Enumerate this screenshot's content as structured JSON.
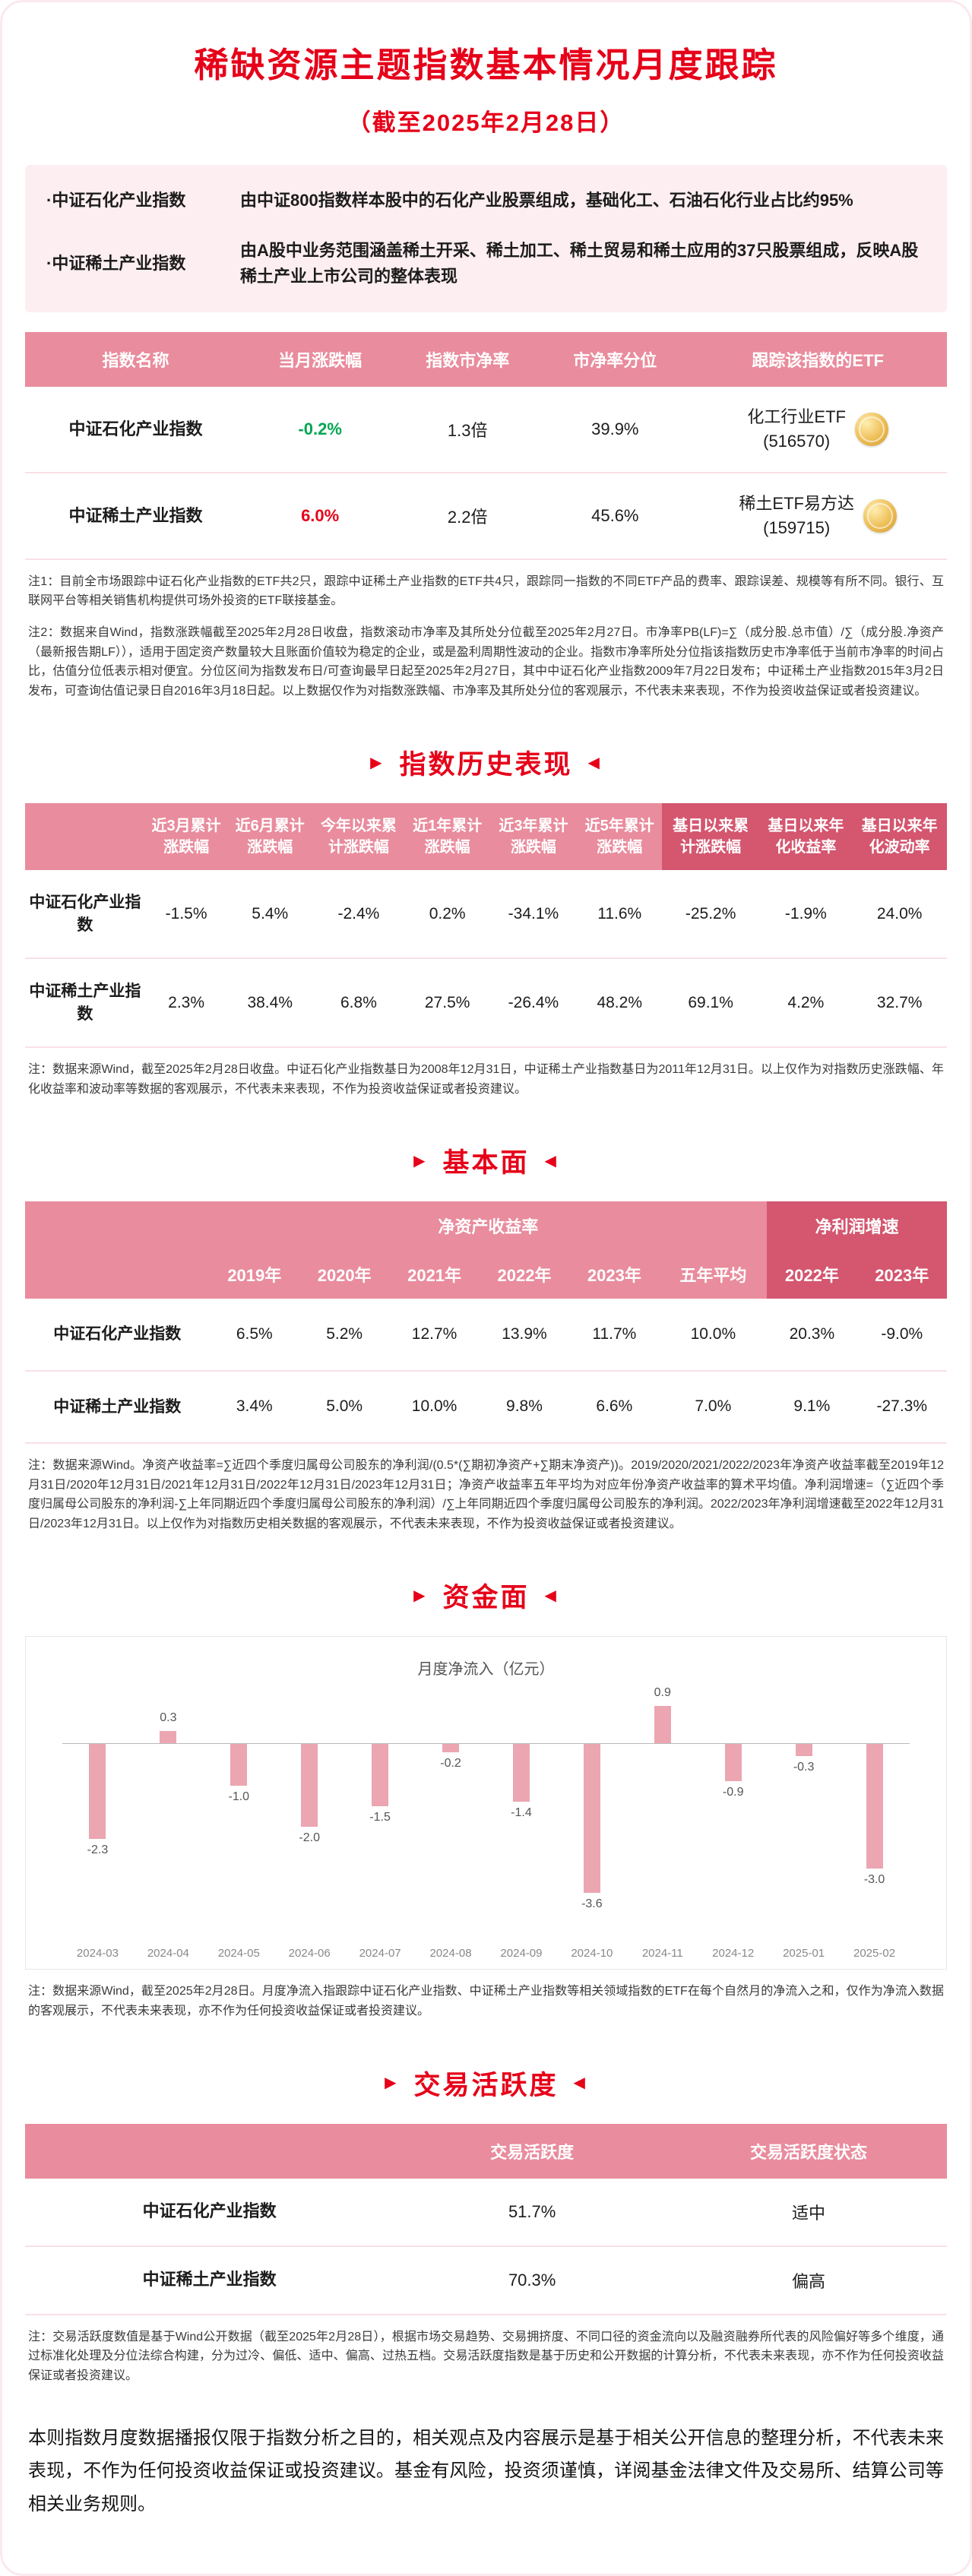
{
  "page": {
    "title": "稀缺资源主题指数基本情况月度跟踪",
    "subtitle": "（截至2025年2月28日）"
  },
  "icons": {
    "right_arrow": "▶",
    "left_arrow": "◀",
    "award_badge": "gold-seal"
  },
  "colors": {
    "accent_red": "#e60019",
    "header_pink": "#e98c9d",
    "header_dark_pink": "#d4566f",
    "up_red": "#e60019",
    "down_green": "#00a651"
  },
  "intro": [
    {
      "label": "·中证石化产业指数",
      "desc": "由中证800指数样本股中的石化产业股票组成，基础化工、石油石化行业占比约95%"
    },
    {
      "label": "·中证稀土产业指数",
      "desc": "由A股中业务范围涵盖稀土开采、稀土加工、稀土贸易和稀土应用的37只股票组成，反映A股稀土产业上市公司的整体表现"
    }
  ],
  "overview": {
    "headers": [
      "指数名称",
      "当月涨跌幅",
      "指数市净率",
      "市净率分位",
      "跟踪该指数的ETF"
    ],
    "rows": [
      {
        "name": "中证石化产业指数",
        "change": "-0.2%",
        "change_color": "#00a651",
        "pb": "1.3倍",
        "pb_quantile": "39.9%",
        "etf_name": "化工行业ETF",
        "etf_code": "(516570)"
      },
      {
        "name": "中证稀土产业指数",
        "change": "6.0%",
        "change_color": "#e60019",
        "pb": "2.2倍",
        "pb_quantile": "45.6%",
        "etf_name": "稀土ETF易方达",
        "etf_code": "(159715)"
      }
    ],
    "note1": "注1：目前全市场跟踪中证石化产业指数的ETF共2只，跟踪中证稀土产业指数的ETF共4只，跟踪同一指数的不同ETF产品的费率、跟踪误差、规模等有所不同。银行、互联网平台等相关销售机构提供可场外投资的ETF联接基金。",
    "note2": "注2：数据来自Wind，指数涨跌幅截至2025年2月28日收盘，指数滚动市净率及其所处分位截至2025年2月27日。市净率PB(LF)=∑（成分股.总市值）/∑（成分股.净资产（最新报告期LF）），适用于固定资产数量较大且账面价值较为稳定的企业，或是盈利周期性波动的企业。指数市净率所处分位指该指数历史市净率低于当前市净率的时间占比，估值分位低表示相对便宜。分位区间为指数发布日/可查询最早日起至2025年2月27日，其中中证石化产业指数2009年7月22日发布；中证稀土产业指数2015年3月2日发布，可查询估值记录日自2016年3月18日起。以上数据仅作为对指数涨跌幅、市净率及其所处分位的客观展示，不代表未来表现，不作为投资收益保证或者投资建议。"
  },
  "history": {
    "section_title": "指数历史表现",
    "headers": [
      "近3月累计涨跌幅",
      "近6月累计涨跌幅",
      "今年以来累计涨跌幅",
      "近1年累计涨跌幅",
      "近3年累计涨跌幅",
      "近5年累计涨跌幅",
      "基日以来累计涨跌幅",
      "基日以来年化收益率",
      "基日以来年化波动率"
    ],
    "rows": [
      {
        "name": "中证石化产业指数",
        "values": [
          "-1.5%",
          "5.4%",
          "-2.4%",
          "0.2%",
          "-34.1%",
          "11.6%",
          "-25.2%",
          "-1.9%",
          "24.0%"
        ]
      },
      {
        "name": "中证稀土产业指数",
        "values": [
          "2.3%",
          "38.4%",
          "6.8%",
          "27.5%",
          "-26.4%",
          "48.2%",
          "69.1%",
          "4.2%",
          "32.7%"
        ]
      }
    ],
    "note": "注：数据来源Wind，截至2025年2月28日收盘。中证石化产业指数基日为2008年12月31日，中证稀土产业指数基日为2011年12月31日。以上仅作为对指数历史涨跌幅、年化收益率和波动率等数据的客观展示，不代表未来表现，不作为投资收益保证或者投资建议。"
  },
  "fundamentals": {
    "section_title": "基本面",
    "group_headers": [
      "净资产收益率",
      "净利润增速"
    ],
    "year_headers": [
      "2019年",
      "2020年",
      "2021年",
      "2022年",
      "2023年",
      "五年平均",
      "2022年",
      "2023年"
    ],
    "rows": [
      {
        "name": "中证石化产业指数",
        "values": [
          "6.5%",
          "5.2%",
          "12.7%",
          "13.9%",
          "11.7%",
          "10.0%",
          "20.3%",
          "-9.0%"
        ]
      },
      {
        "name": "中证稀土产业指数",
        "values": [
          "3.4%",
          "5.0%",
          "10.0%",
          "9.8%",
          "6.6%",
          "7.0%",
          "9.1%",
          "-27.3%"
        ]
      }
    ],
    "note": "注：数据来源Wind。净资产收益率=∑近四个季度归属母公司股东的净利润/(0.5*(∑期初净资产+∑期末净资产))。2019/2020/2021/2022/2023年净资产收益率截至2019年12月31日/2020年12月31日/2021年12月31日/2022年12月31日/2023年12月31日；净资产收益率五年平均为对应年份净资产收益率的算术平均值。净利润增速=（∑近四个季度归属母公司股东的净利润-∑上年同期近四个季度归属母公司股东的净利润）/∑上年同期近四个季度归属母公司股东的净利润。2022/2023年净利润增速截至2022年12月31日/2023年12月31日。以上仅作为对指数历史相关数据的客观展示，不代表未来表现，不作为投资收益保证或者投资建议。"
  },
  "funds_section": {
    "section_title": "资金面",
    "note": "注：数据来源Wind，截至2025年2月28日。月度净流入指跟踪中证石化产业指数、中证稀土产业指数等相关领域指数的ETF在每个自然月的净流入之和，仅作为净流入数据的客观展示，不代表未来表现，亦不作为任何投资收益保证或者投资建议。"
  },
  "chart_data": {
    "type": "bar",
    "title": "月度净流入（亿元）",
    "categories": [
      "2024-03",
      "2024-04",
      "2024-05",
      "2024-06",
      "2024-07",
      "2024-08",
      "2024-09",
      "2024-10",
      "2024-11",
      "2024-12",
      "2025-01",
      "2025-02"
    ],
    "values": [
      -2.3,
      0.3,
      -1.0,
      -2.0,
      -1.5,
      -0.2,
      -1.4,
      -3.6,
      0.9,
      -0.9,
      -0.3,
      -3.0
    ],
    "bar_color": "#eba6b2",
    "value_label_color": "#555555",
    "ylim": [
      -4.3,
      1.2
    ],
    "grid": false,
    "legend": "none",
    "xlabel": "",
    "ylabel": ""
  },
  "activity": {
    "section_title": "交易活跃度",
    "headers": [
      "交易活跃度",
      "交易活跃度状态"
    ],
    "rows": [
      {
        "name": "中证石化产业指数",
        "value": "51.7%",
        "status": "适中"
      },
      {
        "name": "中证稀土产业指数",
        "value": "70.3%",
        "status": "偏高"
      }
    ],
    "note": "注：交易活跃度数值是基于Wind公开数据（截至2025年2月28日），根据市场交易趋势、交易拥挤度、不同口径的资金流向以及融资融券所代表的风险偏好等多个维度，通过标准化处理及分位法综合构建，分为过冷、偏低、适中、偏高、过热五档。交易活跃度指数是基于历史和公开数据的计算分析，不代表未来表现，亦不作为任何投资收益保证或者投资建议。"
  },
  "footer": "本则指数月度数据播报仅限于指数分析之目的，相关观点及内容展示是基于相关公开信息的整理分析，不代表未来表现，不作为任何投资收益保证或投资建议。基金有风险，投资须谨慎，详阅基金法律文件及交易所、结算公司等相关业务规则。"
}
